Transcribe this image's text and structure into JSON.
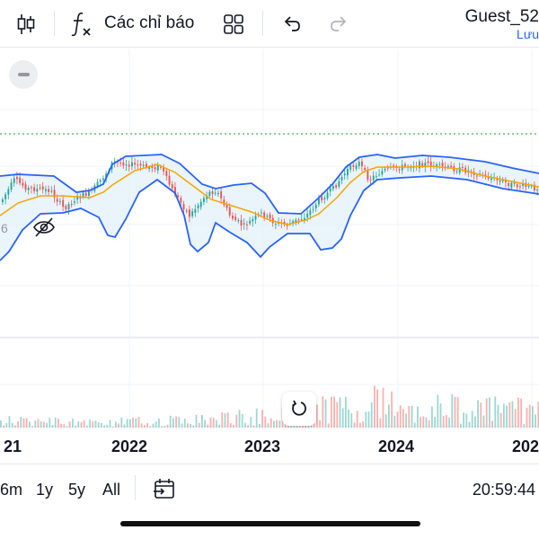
{
  "toolbar": {
    "candle_icon": "candlestick-icon",
    "fx_icon": "function-icon",
    "indicators_label": "Các chỉ báo",
    "layout_icon": "grid-icon",
    "undo_icon": "undo-icon",
    "redo_icon": "redo-icon",
    "username": "Guest_52",
    "save_label": "Lưu"
  },
  "chart": {
    "x_labels": [
      "21",
      "2022",
      "2023",
      "2024",
      "202"
    ],
    "hidden_label_fragment": "6",
    "colors": {
      "up": "#26a69a",
      "down": "#ef5350",
      "bands": "#2962ff",
      "basis": "#f7a600",
      "band_fill": "#e3f0fa",
      "dotted_line": "#4caf50"
    }
  },
  "bottom": {
    "ranges": [
      "6m",
      "1y",
      "5y",
      "All"
    ],
    "time": "20:59:44"
  }
}
